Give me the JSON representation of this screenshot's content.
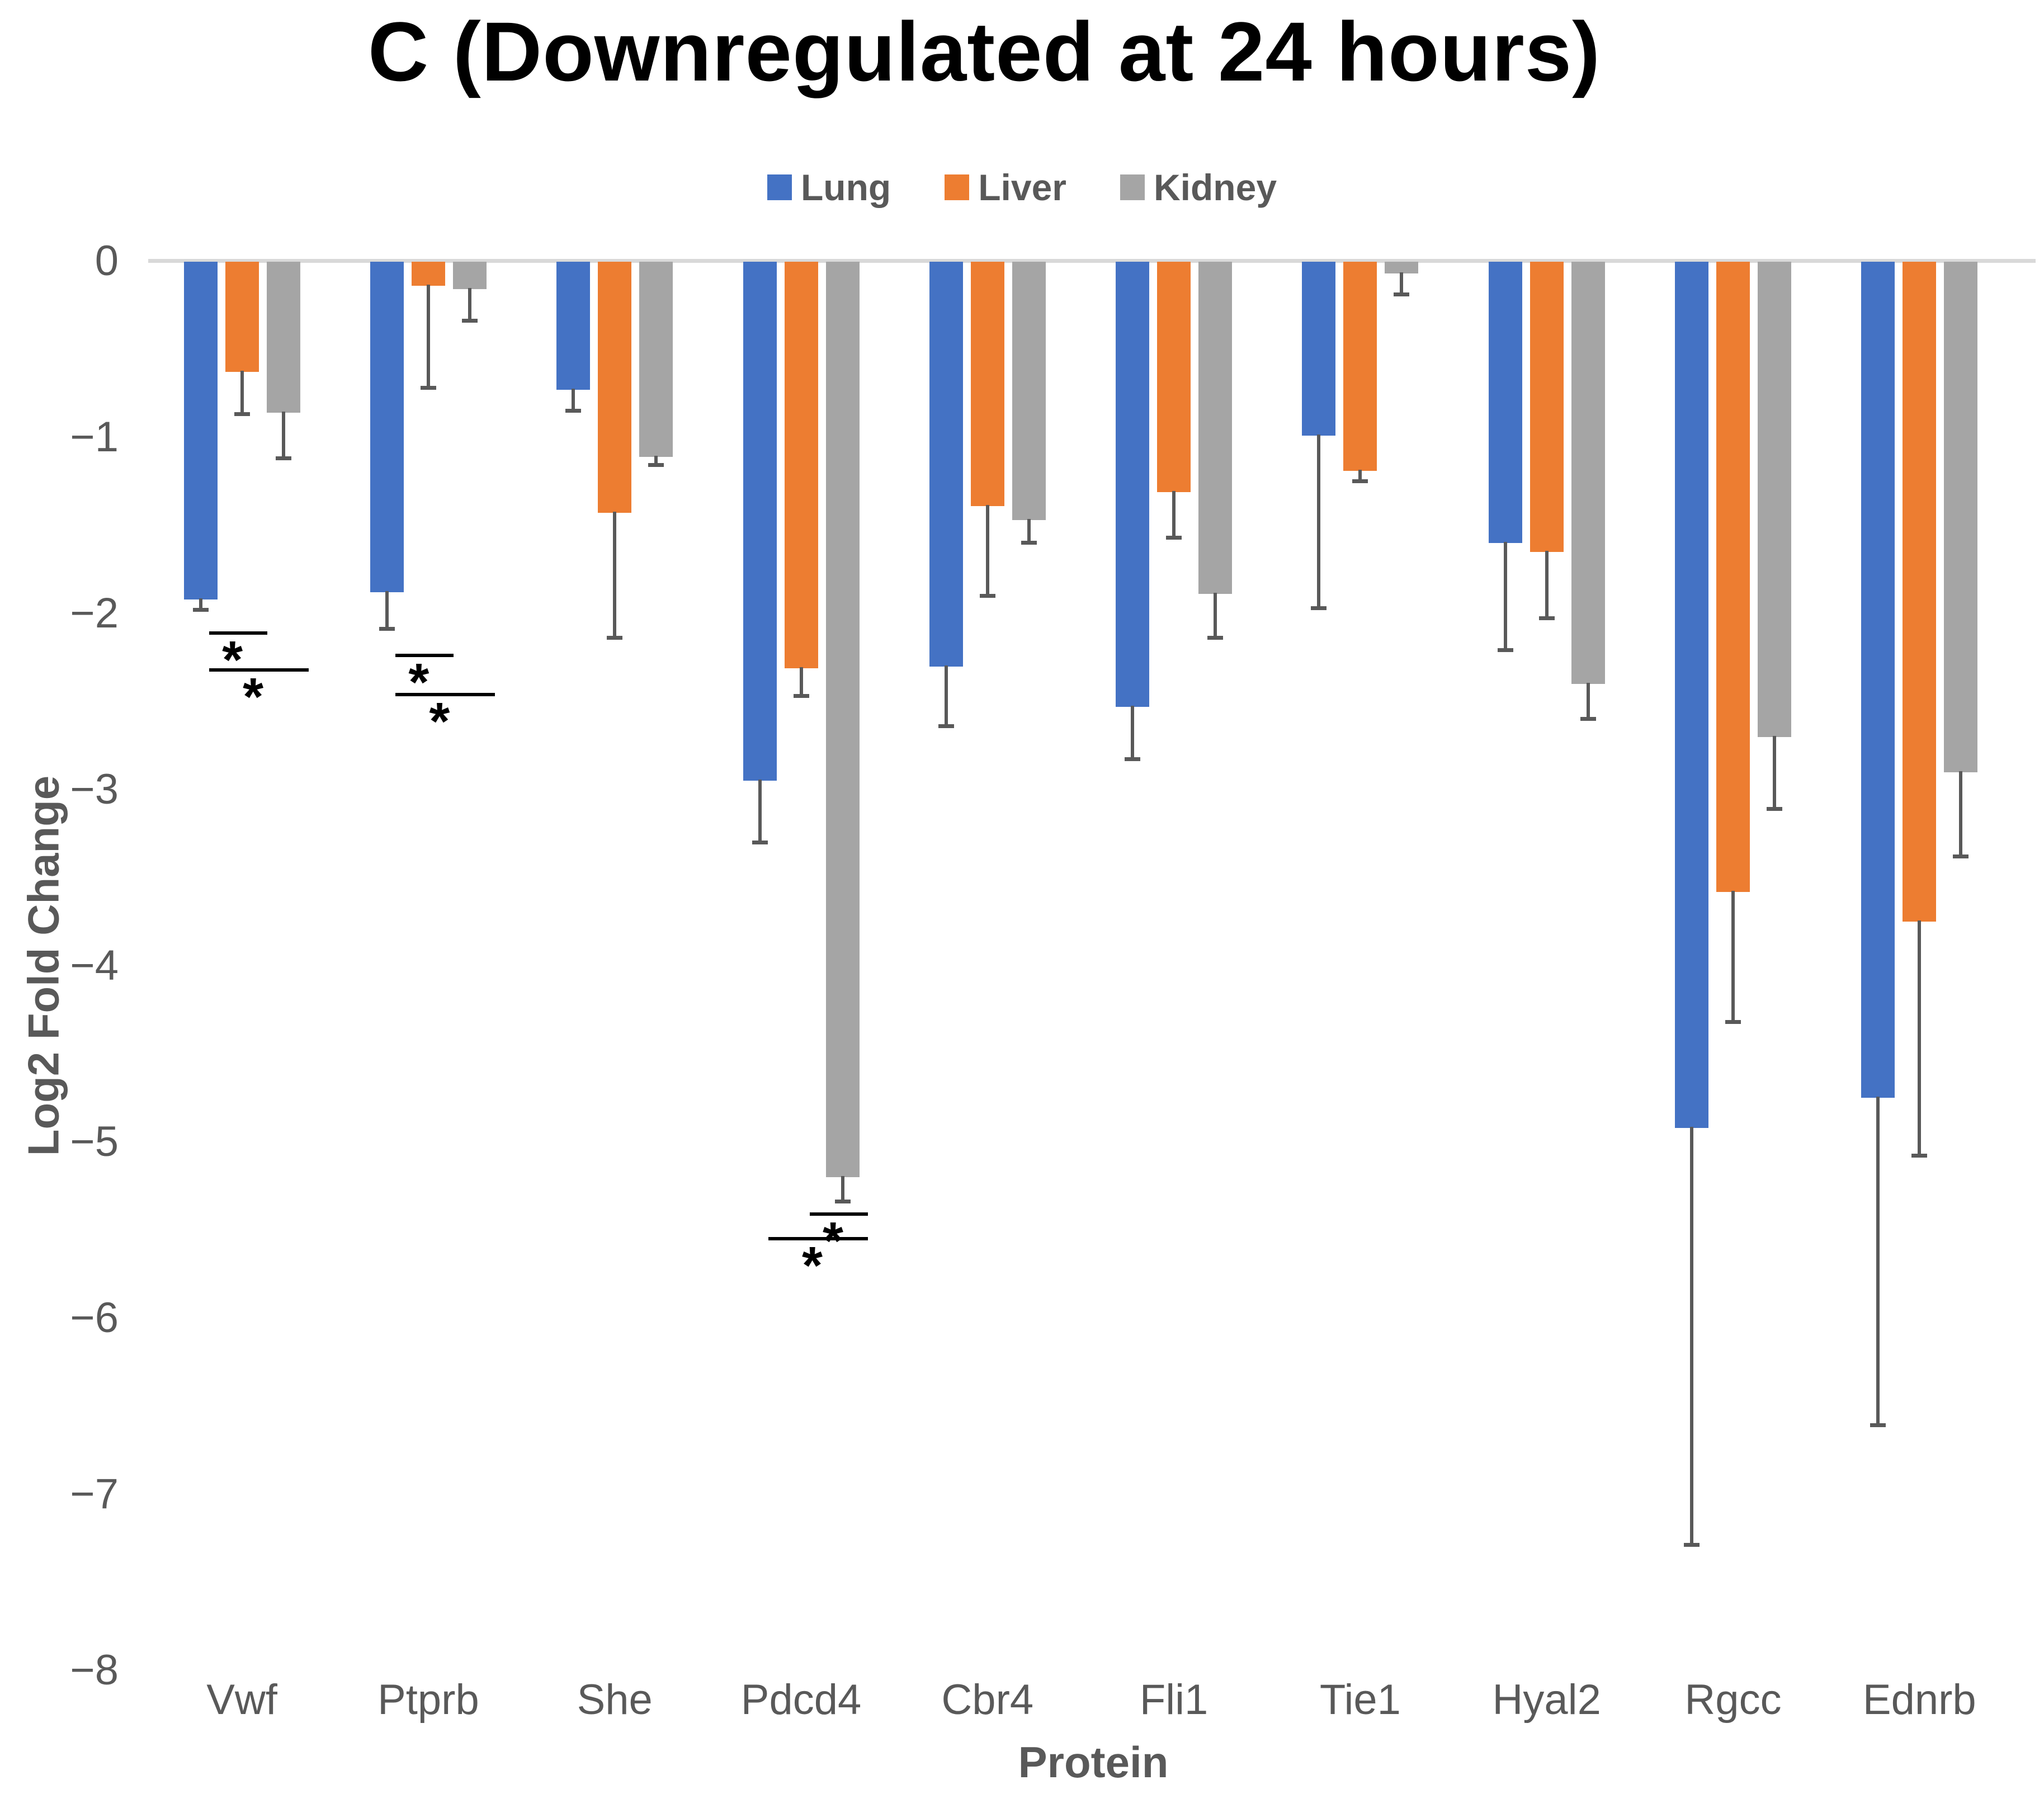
{
  "chart_data": {
    "type": "bar",
    "title": "C (Downregulated at 24 hours)",
    "xlabel": "Protein",
    "ylabel": "Log2 Fold Change",
    "ylim": [
      -8,
      0
    ],
    "yticks": [
      0,
      -1,
      -2,
      -3,
      -4,
      -5,
      -6,
      -7,
      -8
    ],
    "grid": "zero-baseline-only",
    "legend_position": "top-center",
    "error_bars": "downward, with end caps",
    "categories": [
      "Vwf",
      "Ptprb",
      "She",
      "Pdcd4",
      "Cbr4",
      "Fli1",
      "Tie1",
      "Hyal2",
      "Rgcc",
      "Ednrb"
    ],
    "series": [
      {
        "name": "Lung",
        "color": "#4472C4",
        "values": [
          -1.92,
          -1.88,
          -0.73,
          -2.95,
          -2.3,
          -2.53,
          -0.99,
          -1.6,
          -4.92,
          -4.75
        ],
        "errors": [
          0.06,
          0.21,
          0.12,
          0.35,
          0.34,
          0.3,
          0.98,
          0.61,
          2.37,
          1.86
        ]
      },
      {
        "name": "Liver",
        "color": "#ED7D31",
        "values": [
          -0.63,
          -0.14,
          -1.43,
          -2.31,
          -1.39,
          -1.31,
          -1.19,
          -1.65,
          -3.58,
          -3.75
        ],
        "errors": [
          0.24,
          0.58,
          0.71,
          0.16,
          0.51,
          0.26,
          0.06,
          0.38,
          0.74,
          1.33
        ]
      },
      {
        "name": "Kidney",
        "color": "#A5A5A5",
        "values": [
          -0.86,
          -0.16,
          -1.11,
          -5.2,
          -1.47,
          -1.89,
          -0.07,
          -2.4,
          -2.7,
          -2.9
        ],
        "errors": [
          0.26,
          0.18,
          0.05,
          0.14,
          0.13,
          0.25,
          0.12,
          0.2,
          0.41,
          0.48
        ]
      }
    ],
    "significance_brackets": [
      {
        "category": "Vwf",
        "between": [
          "Lung",
          "Liver"
        ],
        "y": -2.1,
        "label": "*"
      },
      {
        "category": "Vwf",
        "between": [
          "Lung",
          "Kidney"
        ],
        "y": -2.31,
        "label": "*"
      },
      {
        "category": "Ptprb",
        "between": [
          "Lung",
          "Liver"
        ],
        "y": -2.23,
        "label": "*"
      },
      {
        "category": "Ptprb",
        "between": [
          "Lung",
          "Kidney"
        ],
        "y": -2.45,
        "label": "*"
      },
      {
        "category": "Pdcd4",
        "between": [
          "Liver",
          "Kidney"
        ],
        "y": -5.4,
        "label": "*"
      },
      {
        "category": "Pdcd4",
        "between": [
          "Lung",
          "Kidney"
        ],
        "y": -5.54,
        "label": "*"
      }
    ],
    "colors": {
      "baseline": "#D9D9D9",
      "error_bar": "#595959",
      "text": "#595959",
      "title_text": "#000000",
      "significance": "#000000"
    }
  }
}
